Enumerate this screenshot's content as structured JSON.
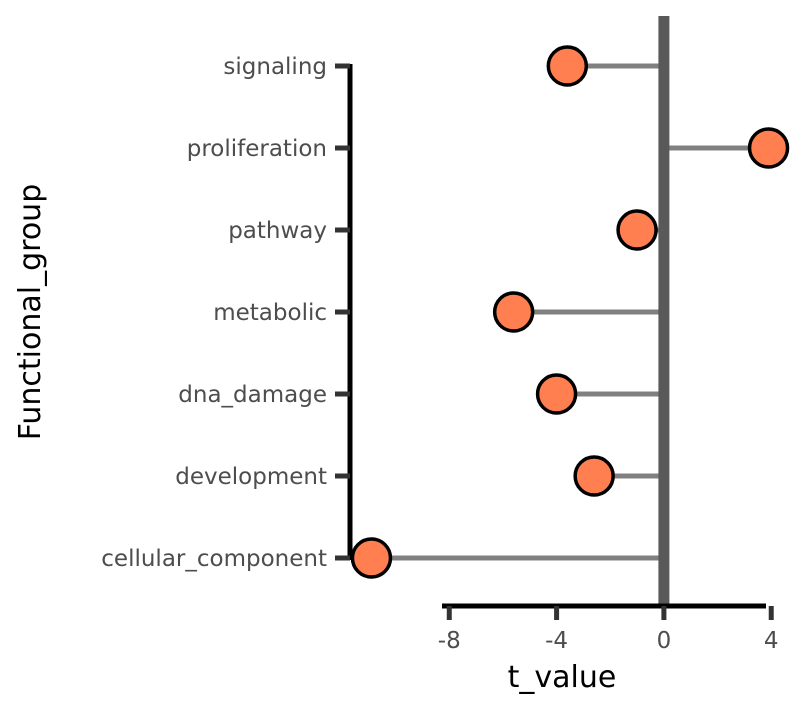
{
  "chart_data": {
    "type": "lollipop",
    "xlabel": "t_value",
    "ylabel": "Functional_group",
    "x_ticks": [
      -8,
      -4,
      0,
      4
    ],
    "x_tick_labels": [
      "-8",
      "-4",
      "0",
      "4"
    ],
    "xlim": [
      -11.7,
      4.7
    ],
    "categories": [
      "signaling",
      "proliferation",
      "pathway",
      "metabolic",
      "dna_damage",
      "development",
      "cellular_component"
    ],
    "values": [
      -3.6,
      3.9,
      -1.0,
      -5.6,
      -4.0,
      -2.6,
      -10.9
    ],
    "colors": {
      "point_fill": "#FF7F50",
      "point_stroke": "#000000",
      "segment": "#808080",
      "zero_line": "#595959",
      "axis": "#000000",
      "tick_text": "#4d4d4d"
    },
    "grid": false,
    "legend": "none"
  }
}
